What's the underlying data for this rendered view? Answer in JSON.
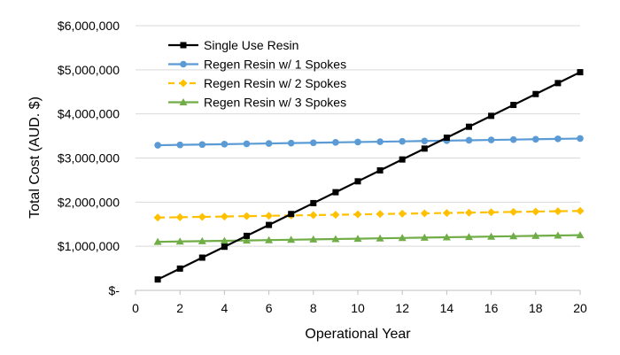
{
  "chart_data": {
    "type": "line",
    "title": "",
    "xlabel": "Operational Year",
    "ylabel": "Total Cost (AUD. $)",
    "xlim": [
      0,
      20
    ],
    "ylim": [
      0,
      6000000
    ],
    "x_ticks": [
      "0",
      "2",
      "4",
      "6",
      "8",
      "10",
      "12",
      "14",
      "16",
      "18",
      "20"
    ],
    "y_ticks": [
      "$-",
      "$1,000,000",
      "$2,000,000",
      "$3,000,000",
      "$4,000,000",
      "$5,000,000",
      "$6,000,000"
    ],
    "grid": "horizontal",
    "legend_position": "top-left",
    "x": [
      1,
      2,
      3,
      4,
      5,
      6,
      7,
      8,
      9,
      10,
      11,
      12,
      13,
      14,
      15,
      16,
      17,
      18,
      19,
      20
    ],
    "series": [
      {
        "name": "Single Use Resin",
        "color": "#000000",
        "marker": "square",
        "dash": "solid",
        "values": [
          247000,
          494000,
          742000,
          989000,
          1236000,
          1483000,
          1731000,
          1978000,
          2225000,
          2472000,
          2720000,
          2967000,
          3214000,
          3461000,
          3709000,
          3956000,
          4203000,
          4450000,
          4698000,
          4945000
        ]
      },
      {
        "name": "Regen Resin w/ 1 Spokes",
        "color": "#5b9bd5",
        "marker": "circle",
        "dash": "solid",
        "values": [
          3290000,
          3298000,
          3306000,
          3314000,
          3322000,
          3330000,
          3338000,
          3346000,
          3354000,
          3362000,
          3370000,
          3378000,
          3386000,
          3394000,
          3402000,
          3410000,
          3418000,
          3426000,
          3434000,
          3442000
        ]
      },
      {
        "name": "Regen Resin w/ 2 Spokes",
        "color": "#ffc000",
        "marker": "diamond",
        "dash": "dashed",
        "values": [
          1650000,
          1658000,
          1666000,
          1674000,
          1682000,
          1690000,
          1698000,
          1706000,
          1714000,
          1722000,
          1730000,
          1738000,
          1746000,
          1754000,
          1762000,
          1770000,
          1778000,
          1786000,
          1794000,
          1802000
        ]
      },
      {
        "name": "Regen Resin w/ 3 Spokes",
        "color": "#70ad47",
        "marker": "triangle",
        "dash": "solid",
        "values": [
          1100000,
          1108000,
          1116000,
          1124000,
          1132000,
          1140000,
          1148000,
          1156000,
          1164000,
          1172000,
          1180000,
          1188000,
          1196000,
          1204000,
          1212000,
          1220000,
          1228000,
          1236000,
          1244000,
          1252000
        ]
      }
    ]
  }
}
